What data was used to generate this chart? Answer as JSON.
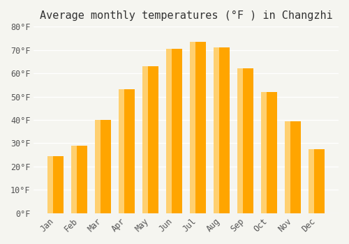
{
  "title": "Average monthly temperatures (°F ) in Changzhi",
  "months": [
    "Jan",
    "Feb",
    "Mar",
    "Apr",
    "May",
    "Jun",
    "Jul",
    "Aug",
    "Sep",
    "Oct",
    "Nov",
    "Dec"
  ],
  "values": [
    24.5,
    29.0,
    40.0,
    53.0,
    63.0,
    70.5,
    73.5,
    71.0,
    62.0,
    52.0,
    39.5,
    27.5
  ],
  "bar_color_main": "#FFA500",
  "bar_color_light": "#FFD070",
  "ylim": [
    0,
    80
  ],
  "yticks": [
    0,
    10,
    20,
    30,
    40,
    50,
    60,
    70,
    80
  ],
  "ytick_labels": [
    "0°F",
    "10°F",
    "20°F",
    "30°F",
    "40°F",
    "50°F",
    "60°F",
    "70°F",
    "80°F"
  ],
  "background_color": "#F5F5F0",
  "grid_color": "#FFFFFF",
  "title_fontsize": 11,
  "tick_fontsize": 8.5
}
